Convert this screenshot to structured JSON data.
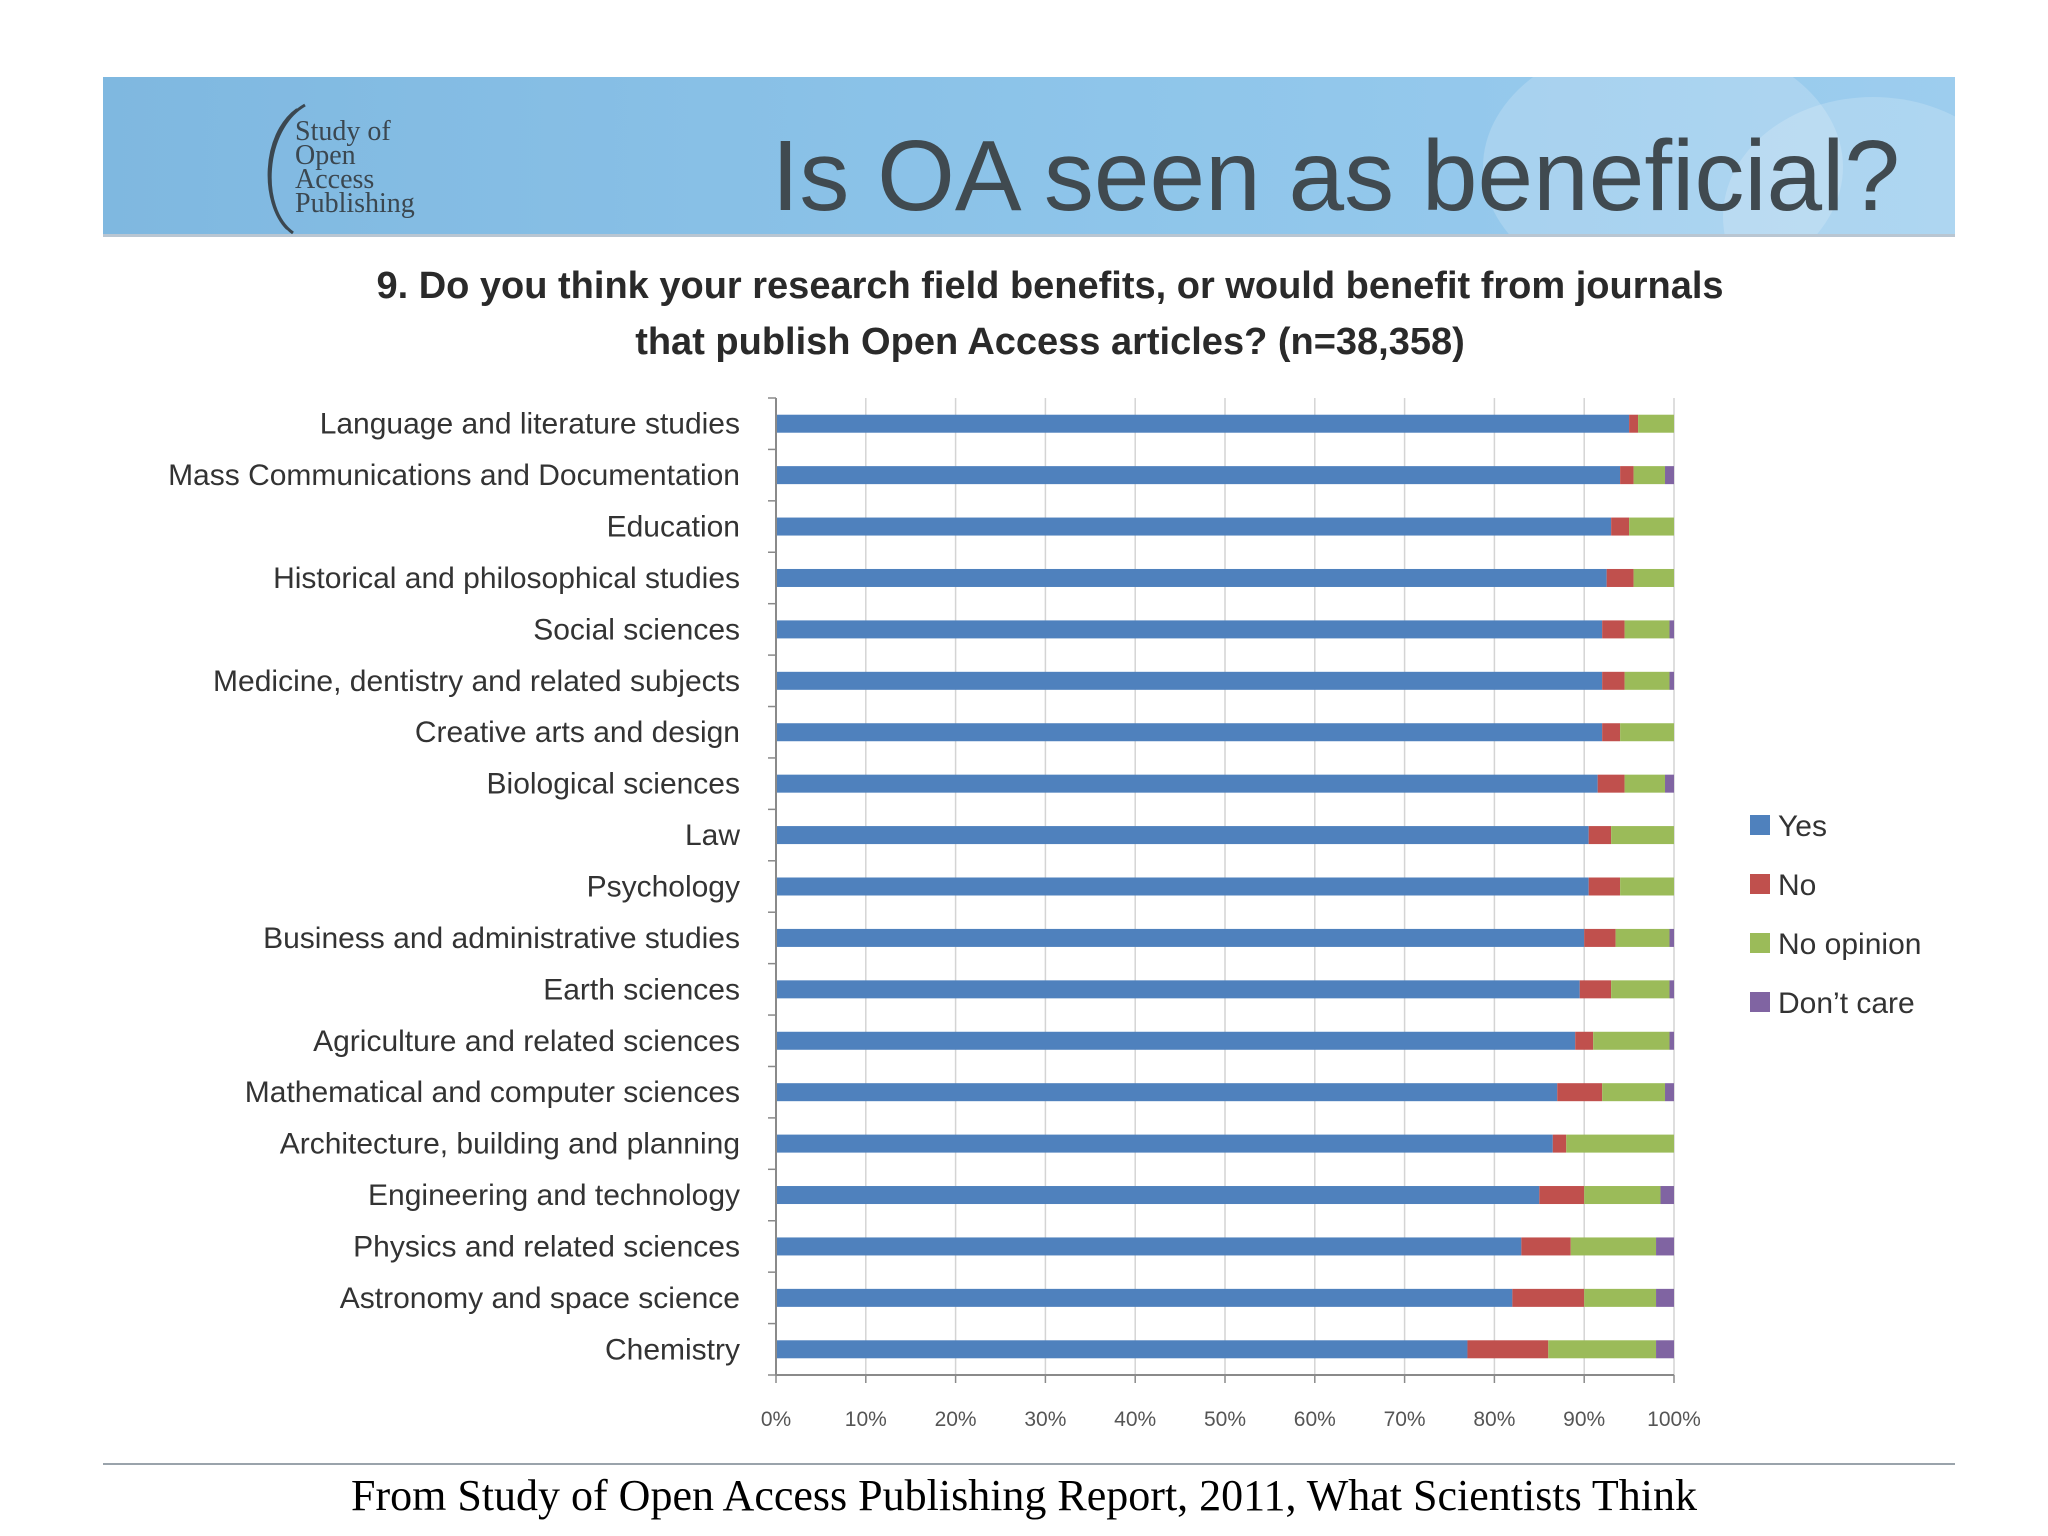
{
  "header": {
    "logo_lines": [
      "Study of",
      "Open",
      "Access",
      "Publishing"
    ],
    "title": "Is OA seen as beneficial?"
  },
  "question": {
    "line1": "9. Do you think your research field benefits, or would benefit from journals",
    "line2": "that publish Open Access articles?  (n=38,358)"
  },
  "footer": {
    "source": "From Study of Open Access Publishing Report, 2011, What Scientists Think"
  },
  "colors": {
    "yes": "#4f81bd",
    "no": "#c0504d",
    "no_opinion": "#9bbb59",
    "dont_care": "#8064a2"
  },
  "chart_data": {
    "type": "bar",
    "orientation": "horizontal",
    "stacked": true,
    "title": "9. Do you think your research field benefits, or would benefit from journals that publish Open Access articles?  (n=38,358)",
    "xlabel": "",
    "ylabel": "",
    "xlim": [
      0,
      100
    ],
    "x_ticks": [
      "0%",
      "10%",
      "20%",
      "30%",
      "40%",
      "50%",
      "60%",
      "70%",
      "80%",
      "90%",
      "100%"
    ],
    "grid": true,
    "legend_position": "right",
    "categories": [
      "Language and literature studies",
      "Mass Communications and Documentation",
      "Education",
      "Historical and philosophical studies",
      "Social sciences",
      "Medicine, dentistry and related subjects",
      "Creative arts and design",
      "Biological sciences",
      "Law",
      "Psychology",
      "Business and administrative studies",
      "Earth sciences",
      "Agriculture and related sciences",
      "Mathematical and computer sciences",
      "Architecture, building and planning",
      "Engineering and technology",
      "Physics and related sciences",
      "Astronomy and space science",
      "Chemistry"
    ],
    "series": [
      {
        "name": "Yes",
        "color": "#4f81bd",
        "values": [
          95,
          94,
          93,
          92.5,
          92,
          92,
          92,
          91.5,
          90.5,
          90.5,
          90,
          89.5,
          89,
          87,
          86.5,
          85,
          83,
          82,
          77
        ]
      },
      {
        "name": "No",
        "color": "#c0504d",
        "values": [
          1,
          1.5,
          2,
          3,
          2.5,
          2.5,
          2,
          3,
          2.5,
          3.5,
          3.5,
          3.5,
          2,
          5,
          1.5,
          5,
          5.5,
          8,
          9
        ]
      },
      {
        "name": "No opinion",
        "color": "#9bbb59",
        "values": [
          4,
          3.5,
          5,
          4.5,
          5,
          5,
          6,
          4.5,
          7,
          6,
          6,
          6.5,
          8.5,
          7,
          12,
          8.5,
          9.5,
          8,
          12
        ]
      },
      {
        "name": "Don’t care",
        "color": "#8064a2",
        "values": [
          0,
          1,
          0,
          0,
          0.5,
          0.5,
          0,
          1,
          0,
          0,
          0.5,
          0.5,
          0.5,
          1,
          0,
          1.5,
          2,
          2,
          2
        ]
      }
    ]
  }
}
